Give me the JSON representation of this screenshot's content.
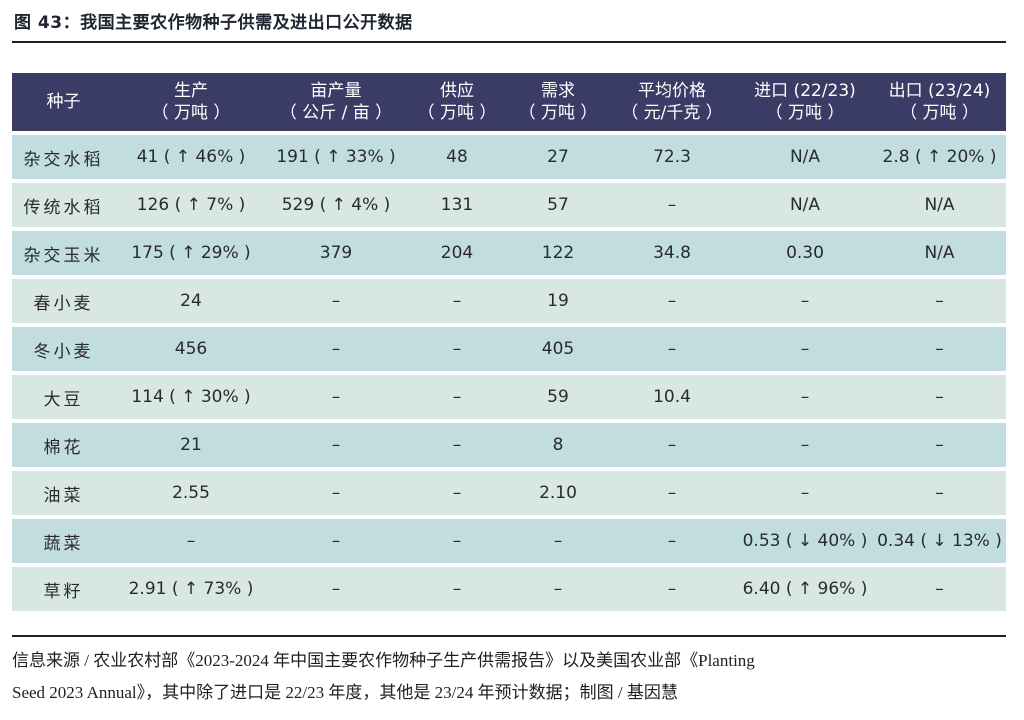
{
  "figure": {
    "title": "图 43：我国主要农作物种子供需及进出口公开数据"
  },
  "table": {
    "headers": [
      {
        "line1": "种子",
        "line2": ""
      },
      {
        "line1": "生产",
        "line2": "（ 万吨 ）"
      },
      {
        "line1": "亩产量",
        "line2": "（ 公斤 / 亩 ）"
      },
      {
        "line1": "供应",
        "line2": "（ 万吨 ）"
      },
      {
        "line1": "需求",
        "line2": "（ 万吨 ）"
      },
      {
        "line1": "平均价格",
        "line2": "（ 元/千克 ）"
      },
      {
        "line1": "进口 (22/23)",
        "line2": "（ 万吨 ）"
      },
      {
        "line1": "出口 (23/24)",
        "line2": "（ 万吨 ）"
      }
    ],
    "rows": [
      [
        "杂交水稻",
        "41 ( ↑ 46% )",
        "191 ( ↑ 33% )",
        "48",
        "27",
        "72.3",
        "N/A",
        "2.8 ( ↑ 20% )"
      ],
      [
        "传统水稻",
        "126 ( ↑ 7% )",
        "529 ( ↑ 4% )",
        "131",
        "57",
        "–",
        "N/A",
        "N/A"
      ],
      [
        "杂交玉米",
        "175 ( ↑ 29% )",
        "379",
        "204",
        "122",
        "34.8",
        "0.30",
        "N/A"
      ],
      [
        "春小麦",
        "24",
        "–",
        "–",
        "19",
        "–",
        "–",
        "–"
      ],
      [
        "冬小麦",
        "456",
        "–",
        "–",
        "405",
        "–",
        "–",
        "–"
      ],
      [
        "大豆",
        "114 ( ↑ 30% )",
        "–",
        "–",
        "59",
        "10.4",
        "–",
        "–"
      ],
      [
        "棉花",
        "21",
        "–",
        "–",
        "8",
        "–",
        "–",
        "–"
      ],
      [
        "油菜",
        "2.55",
        "–",
        "–",
        "2.10",
        "–",
        "–",
        "–"
      ],
      [
        "蔬菜",
        "–",
        "–",
        "–",
        "–",
        "–",
        "0.53 ( ↓ 40% )",
        "0.34 ( ↓ 13% )"
      ],
      [
        "草籽",
        "2.91 ( ↑ 73% )",
        "–",
        "–",
        "–",
        "–",
        "6.40 ( ↑ 96% )",
        "–"
      ]
    ]
  },
  "source": {
    "line1": "信息来源 / 农业农村部《2023-2024 年中国主要农作物种子生产供需报告》以及美国农业部《Planting",
    "line2": "Seed 2023 Annual》，其中除了进口是 22/23 年度，其他是 23/24 年预计数据；制图 / 基因慧"
  },
  "colors": {
    "header_bg": "#3a3c66",
    "row_dark": "#c2dde0",
    "row_light": "#d8e7e2"
  }
}
